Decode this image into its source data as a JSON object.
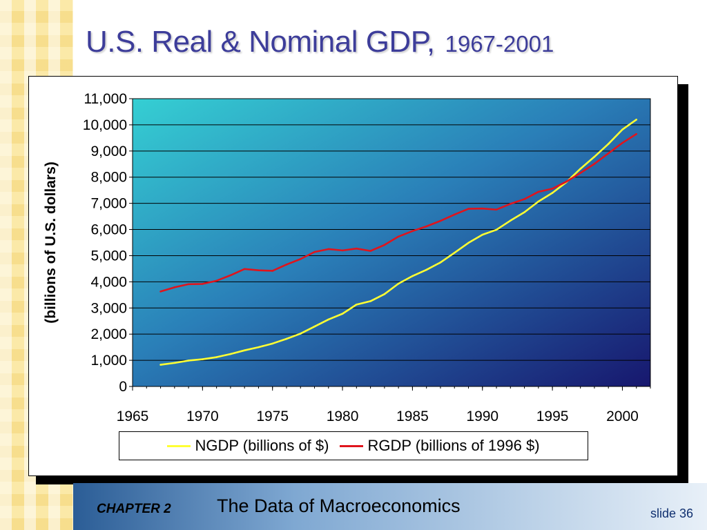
{
  "slide": {
    "title_main": "U.S. Real & Nominal GDP,",
    "title_years": "1967-2001",
    "footer_chapter": "CHAPTER 2",
    "footer_title": "The Data of Macroeconomics",
    "footer_slide": "slide 36"
  },
  "legend": {
    "ngdp_label": "NGDP (billions of $)",
    "rgdp_label": "RGDP (billions of 1996 $)"
  },
  "colors": {
    "ngdp": "#ffff33",
    "rgdp": "#e0141c",
    "plot_top_left": "#35cfd3",
    "plot_bottom_right": "#17176e",
    "title": "#3d3d9a"
  },
  "chart_data": {
    "type": "line",
    "title": "",
    "xlabel": "",
    "ylabel": "(billions of U.S. dollars)",
    "xlim": [
      1965,
      2002
    ],
    "ylim": [
      0,
      11000
    ],
    "x_ticks": [
      1965,
      1970,
      1975,
      1980,
      1985,
      1990,
      1995,
      2000
    ],
    "x_tick_labels": [
      "1965",
      "1970",
      "1975",
      "1980",
      "1985",
      "1990",
      "1995",
      "2000"
    ],
    "y_ticks": [
      0,
      1000,
      2000,
      3000,
      4000,
      5000,
      6000,
      7000,
      8000,
      9000,
      10000,
      11000
    ],
    "y_tick_labels": [
      "0",
      "1,000",
      "2,000",
      "3,000",
      "4,000",
      "5,000",
      "6,000",
      "7,000",
      "8,000",
      "9,000",
      "10,000",
      "11,000"
    ],
    "grid": "horizontal",
    "legend_position": "bottom",
    "series": [
      {
        "name": "NGDP (billions of $)",
        "color": "#ffff33",
        "x": [
          1967,
          1968,
          1969,
          1970,
          1971,
          1972,
          1973,
          1974,
          1975,
          1976,
          1977,
          1978,
          1979,
          1980,
          1981,
          1982,
          1983,
          1984,
          1985,
          1986,
          1987,
          1988,
          1989,
          1990,
          1991,
          1992,
          1993,
          1994,
          1995,
          1996,
          1997,
          1998,
          1999,
          2000,
          2001
        ],
        "values": [
          830,
          900,
          990,
          1040,
          1120,
          1240,
          1380,
          1500,
          1640,
          1820,
          2020,
          2290,
          2560,
          2780,
          3130,
          3260,
          3530,
          3930,
          4220,
          4460,
          4740,
          5110,
          5490,
          5800,
          5990,
          6340,
          6660,
          7070,
          7400,
          7810,
          8320,
          8780,
          9270,
          9820,
          10200
        ]
      },
      {
        "name": "RGDP (billions of 1996 $)",
        "color": "#e0141c",
        "x": [
          1967,
          1968,
          1969,
          1970,
          1971,
          1972,
          1973,
          1974,
          1975,
          1976,
          1977,
          1978,
          1979,
          1980,
          1981,
          1982,
          1983,
          1984,
          1985,
          1986,
          1987,
          1988,
          1989,
          1990,
          1991,
          1992,
          1993,
          1994,
          1995,
          1996,
          1997,
          1998,
          1999,
          2000,
          2001
        ],
        "values": [
          3630,
          3790,
          3910,
          3920,
          4040,
          4250,
          4490,
          4440,
          4420,
          4660,
          4870,
          5140,
          5250,
          5200,
          5270,
          5180,
          5410,
          5730,
          5940,
          6120,
          6330,
          6570,
          6790,
          6800,
          6760,
          6980,
          7160,
          7440,
          7560,
          7830,
          8160,
          8510,
          8910,
          9310,
          9650
        ]
      }
    ]
  }
}
